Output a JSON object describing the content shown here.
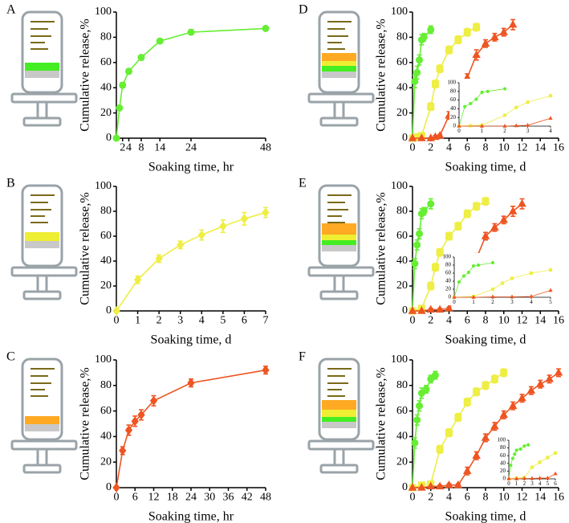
{
  "chart_data": [
    {
      "type": "line",
      "label": "A",
      "xlabel": "Soaking time, hr",
      "ylabel": "Cumulative release,%",
      "xlim": [
        0,
        48
      ],
      "xticks": [
        2,
        4,
        8,
        14,
        24,
        48
      ],
      "ylim": [
        0,
        100
      ],
      "yticks": [
        0,
        20,
        40,
        60,
        80,
        100
      ],
      "series": [
        {
          "color": "#66ee33",
          "marker": "circle",
          "x": [
            0,
            1,
            2,
            4,
            8,
            14,
            24,
            48
          ],
          "values": [
            0,
            24,
            42,
            53,
            64,
            77,
            84,
            87
          ],
          "errors": [
            0,
            1,
            2,
            2,
            2,
            1,
            2,
            1
          ]
        }
      ]
    },
    {
      "type": "line",
      "label": "B",
      "xlabel": "Soaking time, d",
      "ylabel": "Cumulative release,%",
      "xlim": [
        0,
        7
      ],
      "xticks": [
        0,
        1,
        2,
        3,
        4,
        5,
        6,
        7
      ],
      "ylim": [
        0,
        100
      ],
      "yticks": [
        0,
        20,
        40,
        60,
        80,
        100
      ],
      "series": [
        {
          "color": "#eeee44",
          "marker": "diamond",
          "x": [
            0,
            1,
            2,
            3,
            4,
            5,
            6,
            7
          ],
          "values": [
            0,
            25,
            42,
            53,
            61,
            68,
            74,
            79
          ],
          "errors": [
            0,
            3,
            3,
            3,
            4,
            5,
            5,
            4
          ]
        }
      ]
    },
    {
      "type": "line",
      "label": "C",
      "xlabel": "Soaking time, hr",
      "ylabel": "Cumulative release,%",
      "xlim": [
        0,
        48
      ],
      "xticks": [
        0,
        6,
        12,
        18,
        24,
        30,
        36,
        42,
        48
      ],
      "ylim": [
        0,
        100
      ],
      "yticks": [
        0,
        20,
        40,
        60,
        80,
        100
      ],
      "series": [
        {
          "color": "#ee5522",
          "marker": "diamond",
          "x": [
            0,
            2,
            4,
            6,
            8,
            12,
            24,
            48
          ],
          "values": [
            0,
            29,
            45,
            52,
            57,
            68,
            82,
            92
          ],
          "errors": [
            0,
            3,
            4,
            4,
            4,
            4,
            3,
            3
          ]
        }
      ]
    },
    {
      "type": "line",
      "label": "D",
      "xlabel": "Soaking time, d",
      "ylabel": "Cumulative release,%",
      "xlim": [
        0,
        16
      ],
      "xticks": [
        0,
        2,
        4,
        6,
        8,
        10,
        12,
        14,
        16
      ],
      "ylim": [
        0,
        100
      ],
      "yticks": [
        0,
        20,
        40,
        60,
        80,
        100
      ],
      "series": [
        {
          "color": "#66ee33",
          "marker": "circle",
          "x": [
            0,
            0.25,
            0.5,
            0.75,
            1,
            1.25,
            2
          ],
          "values": [
            0,
            45,
            52,
            62,
            78,
            80,
            86
          ],
          "errors": [
            0,
            5,
            5,
            4,
            4,
            3,
            3
          ]
        },
        {
          "color": "#eeee44",
          "marker": "square",
          "x": [
            0,
            0.5,
            1,
            2,
            2.5,
            3,
            4,
            5,
            6,
            7
          ],
          "values": [
            0,
            1,
            2,
            25,
            43,
            55,
            70,
            78,
            84,
            88
          ],
          "errors": [
            0,
            1,
            1,
            3,
            3,
            3,
            3,
            3,
            3,
            3
          ]
        },
        {
          "color": "#ee5522",
          "marker": "triangle",
          "x": [
            0,
            1,
            2,
            2.5,
            3,
            4,
            5,
            6,
            7,
            8,
            9,
            10,
            11
          ],
          "values": [
            0,
            0,
            0,
            1,
            2,
            18,
            30,
            48,
            66,
            75,
            80,
            84,
            90
          ],
          "errors": [
            0,
            0,
            0,
            1,
            1,
            3,
            3,
            3,
            4,
            3,
            3,
            3,
            4
          ]
        }
      ],
      "inset": {
        "type": "line",
        "xlim": [
          0,
          4
        ],
        "xticks": [
          0,
          1,
          2,
          3,
          4
        ],
        "ylim": [
          0,
          100
        ],
        "yticks": [
          0,
          20,
          40,
          60,
          80,
          100
        ],
        "series": [
          {
            "color": "#66ee33",
            "marker": "circle",
            "x": [
              0,
              0.25,
              0.5,
              0.75,
              1,
              1.25,
              2
            ],
            "values": [
              0,
              45,
              52,
              62,
              78,
              80,
              86
            ]
          },
          {
            "color": "#eeee44",
            "marker": "square",
            "x": [
              0,
              0.5,
              1,
              2,
              2.5,
              3,
              4
            ],
            "values": [
              0,
              1,
              2,
              25,
              43,
              55,
              70
            ]
          },
          {
            "color": "#ee5522",
            "marker": "triangle",
            "x": [
              0,
              1,
              2,
              2.5,
              3,
              4
            ],
            "values": [
              0,
              0,
              0,
              1,
              2,
              18
            ]
          }
        ]
      }
    },
    {
      "type": "line",
      "label": "E",
      "xlabel": "Soaking time, d",
      "ylabel": "Cumulative release,%",
      "xlim": [
        0,
        16
      ],
      "xticks": [
        0,
        2,
        4,
        6,
        8,
        10,
        12,
        14,
        16
      ],
      "ylim": [
        0,
        100
      ],
      "yticks": [
        0,
        20,
        40,
        60,
        80,
        100
      ],
      "series": [
        {
          "color": "#66ee33",
          "marker": "circle",
          "x": [
            0,
            0.25,
            0.5,
            0.75,
            1,
            1.25,
            2
          ],
          "values": [
            0,
            38,
            53,
            62,
            78,
            80,
            86
          ],
          "errors": [
            0,
            4,
            4,
            4,
            4,
            3,
            4
          ]
        },
        {
          "color": "#eeee44",
          "marker": "square",
          "x": [
            0,
            1,
            2,
            2.5,
            3,
            4,
            5,
            6,
            7,
            8
          ],
          "values": [
            0,
            2,
            20,
            35,
            47,
            60,
            68,
            78,
            84,
            88
          ],
          "errors": [
            0,
            1,
            3,
            3,
            3,
            3,
            3,
            3,
            3,
            3
          ]
        },
        {
          "color": "#ee5522",
          "marker": "triangle",
          "x": [
            0,
            1,
            2,
            3,
            4,
            5,
            6,
            7,
            8,
            9,
            10,
            11,
            12
          ],
          "values": [
            0,
            0,
            1,
            1,
            2,
            17,
            27,
            42,
            60,
            67,
            73,
            80,
            86
          ],
          "errors": [
            0,
            0,
            1,
            1,
            1,
            3,
            3,
            4,
            3,
            3,
            3,
            4,
            4
          ]
        }
      ],
      "inset": {
        "type": "line",
        "xlim": [
          0,
          5
        ],
        "xticks": [
          0,
          1,
          2,
          3,
          4,
          5
        ],
        "ylim": [
          0,
          100
        ],
        "yticks": [
          0,
          20,
          40,
          60,
          80,
          100
        ],
        "series": [
          {
            "color": "#66ee33",
            "marker": "circle",
            "x": [
              0,
              0.25,
              0.5,
              0.75,
              1,
              1.25,
              2
            ],
            "values": [
              0,
              38,
              53,
              62,
              78,
              80,
              86
            ]
          },
          {
            "color": "#eeee44",
            "marker": "square",
            "x": [
              0,
              1,
              2,
              2.5,
              3,
              4,
              5
            ],
            "values": [
              0,
              2,
              20,
              35,
              47,
              60,
              68
            ]
          },
          {
            "color": "#ee5522",
            "marker": "triangle",
            "x": [
              0,
              1,
              2,
              3,
              4,
              5
            ],
            "values": [
              0,
              0,
              1,
              1,
              2,
              17
            ]
          }
        ]
      }
    },
    {
      "type": "line",
      "label": "F",
      "xlabel": "Soaking time, d",
      "ylabel": "Cumulative release,%",
      "xlim": [
        0,
        16
      ],
      "xticks": [
        0,
        2,
        4,
        6,
        8,
        10,
        12,
        14,
        16
      ],
      "ylim": [
        0,
        100
      ],
      "yticks": [
        0,
        20,
        40,
        60,
        80,
        100
      ],
      "series": [
        {
          "color": "#66ee33",
          "marker": "circle",
          "x": [
            0,
            0.25,
            0.5,
            0.75,
            1,
            1.5,
            2,
            2.5
          ],
          "values": [
            0,
            35,
            53,
            64,
            74,
            77,
            85,
            88
          ],
          "errors": [
            0,
            4,
            4,
            4,
            4,
            3,
            3,
            3
          ]
        },
        {
          "color": "#eeee44",
          "marker": "square",
          "x": [
            0,
            1,
            2,
            3,
            4,
            5,
            6,
            7,
            8,
            9,
            10
          ],
          "values": [
            0,
            2,
            3,
            30,
            43,
            55,
            67,
            75,
            80,
            85,
            90
          ],
          "errors": [
            0,
            1,
            1,
            3,
            3,
            3,
            3,
            3,
            3,
            3,
            3
          ]
        },
        {
          "color": "#ee5522",
          "marker": "triangle",
          "x": [
            0,
            1,
            2,
            3,
            4,
            5,
            6,
            7,
            8,
            9,
            10,
            11,
            12,
            13,
            14,
            15,
            16
          ],
          "values": [
            0,
            0,
            1,
            1,
            2,
            2,
            13,
            25,
            39,
            48,
            57,
            64,
            70,
            76,
            81,
            85,
            90
          ],
          "errors": [
            0,
            0,
            0,
            1,
            1,
            1,
            3,
            3,
            3,
            3,
            3,
            3,
            3,
            3,
            3,
            3,
            3
          ]
        }
      ],
      "inset": {
        "type": "line",
        "xlim": [
          0,
          6
        ],
        "xticks": [
          0,
          1,
          2,
          3,
          4,
          5,
          6
        ],
        "ylim": [
          0,
          100
        ],
        "yticks": [
          0,
          20,
          40,
          60,
          80,
          100
        ],
        "series": [
          {
            "color": "#66ee33",
            "marker": "circle",
            "x": [
              0,
              0.25,
              0.5,
              0.75,
              1,
              1.5,
              2,
              2.5
            ],
            "values": [
              0,
              35,
              53,
              64,
              74,
              77,
              85,
              88
            ]
          },
          {
            "color": "#eeee44",
            "marker": "square",
            "x": [
              0,
              1,
              2,
              3,
              4,
              5,
              6
            ],
            "values": [
              0,
              2,
              3,
              30,
              43,
              55,
              67
            ]
          },
          {
            "color": "#ee5522",
            "marker": "triangle",
            "x": [
              0,
              1,
              2,
              3,
              4,
              5,
              6
            ],
            "values": [
              0,
              0,
              1,
              1,
              2,
              2,
              13
            ]
          }
        ]
      }
    }
  ]
}
